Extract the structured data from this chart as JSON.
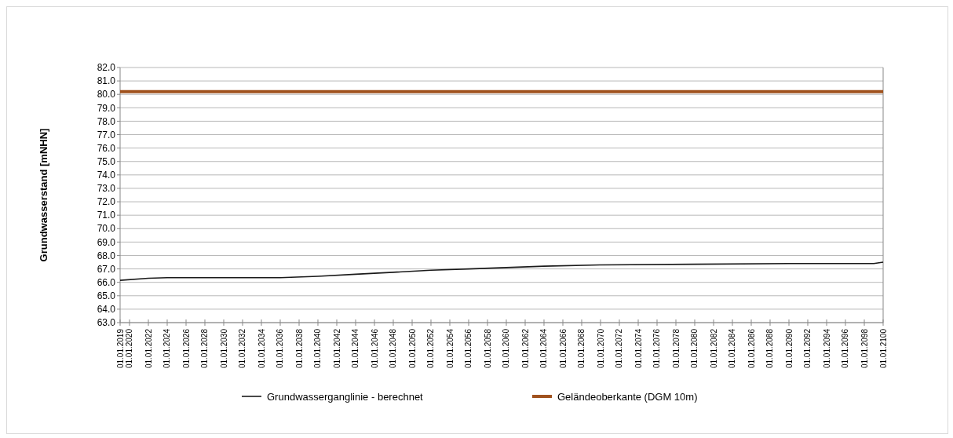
{
  "chart_data": {
    "type": "line",
    "ylabel": "Grundwasserstand  [mNHN]",
    "xlim": [
      "2019-01-01",
      "2100-01-01"
    ],
    "xticks": [
      {
        "value": "2019-01-01",
        "label": "01.01.2019"
      },
      {
        "value": "2020-01-01",
        "label": "01.01.2020"
      },
      {
        "value": "2022-01-01",
        "label": "01.01.2022"
      },
      {
        "value": "2024-01-01",
        "label": "01.01.2024"
      },
      {
        "value": "2026-01-01",
        "label": "01.01.2026"
      },
      {
        "value": "2028-01-01",
        "label": "01.01.2028"
      },
      {
        "value": "2030-01-01",
        "label": "01.01.2030"
      },
      {
        "value": "2032-01-01",
        "label": "01.01.2032"
      },
      {
        "value": "2034-01-01",
        "label": "01.01.2034"
      },
      {
        "value": "2036-01-01",
        "label": "01.01.2036"
      },
      {
        "value": "2038-01-01",
        "label": "01.01.2038"
      },
      {
        "value": "2040-01-01",
        "label": "01.01.2040"
      },
      {
        "value": "2042-01-01",
        "label": "01.01.2042"
      },
      {
        "value": "2044-01-01",
        "label": "01.01.2044"
      },
      {
        "value": "2046-01-01",
        "label": "01.01.2046"
      },
      {
        "value": "2048-01-01",
        "label": "01.01.2048"
      },
      {
        "value": "2050-01-01",
        "label": "01.01.2050"
      },
      {
        "value": "2052-01-01",
        "label": "01.01.2052"
      },
      {
        "value": "2054-01-01",
        "label": "01.01.2054"
      },
      {
        "value": "2056-01-01",
        "label": "01.01.2056"
      },
      {
        "value": "2058-01-01",
        "label": "01.01.2058"
      },
      {
        "value": "2060-01-01",
        "label": "01.01.2060"
      },
      {
        "value": "2062-01-01",
        "label": "01.01.2062"
      },
      {
        "value": "2064-01-01",
        "label": "01.01.2064"
      },
      {
        "value": "2066-01-01",
        "label": "01.01.2066"
      },
      {
        "value": "2068-01-01",
        "label": "01.01.2068"
      },
      {
        "value": "2070-01-01",
        "label": "01.01.2070"
      },
      {
        "value": "2072-01-01",
        "label": "01.01.2072"
      },
      {
        "value": "2074-01-01",
        "label": "01.01.2074"
      },
      {
        "value": "2076-01-01",
        "label": "01.01.2076"
      },
      {
        "value": "2078-01-01",
        "label": "01.01.2078"
      },
      {
        "value": "2080-01-01",
        "label": "01.01.2080"
      },
      {
        "value": "2082-01-01",
        "label": "01.01.2082"
      },
      {
        "value": "2084-01-01",
        "label": "01.01.2084"
      },
      {
        "value": "2086-01-01",
        "label": "01.01.2086"
      },
      {
        "value": "2088-01-01",
        "label": "01.01.2088"
      },
      {
        "value": "2090-01-01",
        "label": "01.01.2090"
      },
      {
        "value": "2092-01-01",
        "label": "01.01.2092"
      },
      {
        "value": "2094-01-01",
        "label": "01.01.2094"
      },
      {
        "value": "2096-01-01",
        "label": "01.01.2096"
      },
      {
        "value": "2098-01-01",
        "label": "01.01.2098"
      },
      {
        "value": "2100-01-01",
        "label": "01.01.2100"
      }
    ],
    "ylim": [
      63,
      82
    ],
    "yticks": [
      {
        "value": 63,
        "label": "63.0"
      },
      {
        "value": 64,
        "label": "64.0"
      },
      {
        "value": 65,
        "label": "65.0"
      },
      {
        "value": 66,
        "label": "66.0"
      },
      {
        "value": 67,
        "label": "67.0"
      },
      {
        "value": 68,
        "label": "68.0"
      },
      {
        "value": 69,
        "label": "69.0"
      },
      {
        "value": 70,
        "label": "70.0"
      },
      {
        "value": 71,
        "label": "71.0"
      },
      {
        "value": 72,
        "label": "72.0"
      },
      {
        "value": 73,
        "label": "73.0"
      },
      {
        "value": 74,
        "label": "74.0"
      },
      {
        "value": 75,
        "label": "75.0"
      },
      {
        "value": 76,
        "label": "76.0"
      },
      {
        "value": 77,
        "label": "77.0"
      },
      {
        "value": 78,
        "label": "78.0"
      },
      {
        "value": 79,
        "label": "79.0"
      },
      {
        "value": 80,
        "label": "80.0"
      },
      {
        "value": 81,
        "label": "81.0"
      },
      {
        "value": 82,
        "label": "82.0"
      }
    ],
    "grid": "y",
    "legend": "bottom",
    "marker": "none",
    "line_style": "solid",
    "series": [
      {
        "name": "Grundwasserganglinie - berechnet",
        "color": "#1a1a1a",
        "x": [
          "2019-01-01",
          "2022-01-01",
          "2024-01-01",
          "2036-01-01",
          "2040-01-01",
          "2044-01-01",
          "2048-01-01",
          "2052-01-01",
          "2056-01-01",
          "2060-01-01",
          "2064-01-01",
          "2070-01-01",
          "2080-01-01",
          "2090-01-01",
          "2099-01-01",
          "2100-01-01"
        ],
        "values": [
          66.15,
          66.3,
          66.35,
          66.35,
          66.45,
          66.6,
          66.75,
          66.9,
          67.0,
          67.1,
          67.2,
          67.3,
          67.35,
          67.4,
          67.4,
          67.5
        ]
      },
      {
        "name": "Geländeoberkante (DGM 10m)",
        "color": "#a0521e",
        "x": [
          "2019-01-01",
          "2100-01-01"
        ],
        "values": [
          80.2,
          80.2
        ]
      }
    ]
  }
}
